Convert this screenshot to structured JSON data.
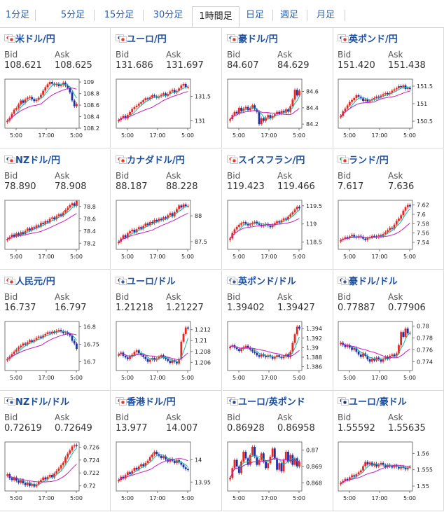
{
  "tabs": [
    {
      "label": "1分足",
      "active": false
    },
    {
      "label": "5分足",
      "active": false
    },
    {
      "label": "15分足",
      "active": false
    },
    {
      "label": "30分足",
      "active": false
    },
    {
      "label": "1時間足",
      "active": true
    },
    {
      "label": "日足",
      "active": false
    },
    {
      "label": "週足",
      "active": false
    },
    {
      "label": "月足",
      "active": false
    }
  ],
  "labels": {
    "bid": "Bid",
    "ask": "Ask"
  },
  "x_ticks": [
    "5:00",
    "17:00",
    "5:00"
  ],
  "colors": {
    "up": "#e8261f",
    "down": "#1b2fa8",
    "ma_fast": "#15b7a5",
    "ma_slow": "#c21fbf",
    "link": "#1d4fa0"
  },
  "pairs": [
    {
      "name": "米ドル/円",
      "bid": "108.621",
      "ask": "108.625",
      "flags": [
        "jp",
        "jp"
      ],
      "y_ticks": [
        "109",
        "108.8",
        "108.6",
        "108.4",
        "108.2"
      ],
      "ylim": [
        108.2,
        109.05
      ],
      "closes": [
        108.33,
        108.38,
        108.45,
        108.52,
        108.55,
        108.61,
        108.68,
        108.64,
        108.7,
        108.73,
        108.74,
        108.7,
        108.67,
        108.69,
        108.73,
        108.78,
        108.85,
        108.91,
        108.96,
        109.0,
        108.97,
        108.95,
        108.97,
        108.93,
        108.95,
        108.99,
        108.94,
        108.9,
        108.82,
        108.68,
        108.58,
        108.62
      ]
    },
    {
      "name": "ユーロ/円",
      "bid": "131.686",
      "ask": "131.697",
      "flags": [
        "eu",
        "jp"
      ],
      "y_ticks": [
        "131.5",
        "131"
      ],
      "ylim": [
        130.85,
        131.85
      ],
      "closes": [
        131.02,
        131.06,
        131.1,
        131.05,
        131.12,
        131.18,
        131.24,
        131.28,
        131.31,
        131.35,
        131.38,
        131.42,
        131.46,
        131.44,
        131.48,
        131.52,
        131.5,
        131.47,
        131.5,
        131.53,
        131.56,
        131.51,
        131.55,
        131.6,
        131.63,
        131.58,
        131.61,
        131.66,
        131.72,
        131.75,
        131.69,
        131.69
      ]
    },
    {
      "name": "豪ドル/円",
      "bid": "84.607",
      "ask": "84.629",
      "flags": [
        "au",
        "jp"
      ],
      "y_ticks": [
        "84.6",
        "84.4",
        "84.2"
      ],
      "ylim": [
        84.15,
        84.75
      ],
      "closes": [
        84.26,
        84.31,
        84.35,
        84.33,
        84.4,
        84.36,
        84.39,
        84.41,
        84.37,
        84.4,
        84.43,
        84.38,
        84.35,
        84.2,
        84.27,
        84.24,
        84.28,
        84.31,
        84.27,
        84.3,
        84.32,
        84.35,
        84.33,
        84.36,
        84.34,
        84.38,
        84.35,
        84.42,
        84.5,
        84.62,
        84.55,
        84.61
      ]
    },
    {
      "name": "英ポンド/円",
      "bid": "151.420",
      "ask": "151.438",
      "flags": [
        "uk",
        "jp"
      ],
      "y_ticks": [
        "151.5",
        "151",
        "150.5"
      ],
      "ylim": [
        150.3,
        151.7
      ],
      "closes": [
        150.65,
        150.78,
        150.86,
        150.95,
        151.05,
        151.1,
        151.16,
        151.24,
        151.2,
        151.15,
        151.08,
        151.12,
        151.06,
        151.09,
        151.13,
        151.16,
        151.2,
        151.18,
        151.23,
        151.27,
        151.3,
        151.27,
        151.31,
        151.37,
        151.41,
        151.44,
        151.5,
        151.47,
        151.52,
        151.42,
        151.45,
        151.42
      ]
    },
    {
      "name": "NZドル/円",
      "bid": "78.890",
      "ask": "78.908",
      "flags": [
        "nz",
        "jp"
      ],
      "y_ticks": [
        "78.8",
        "78.6",
        "78.4",
        "78.2"
      ],
      "ylim": [
        78.1,
        78.9
      ],
      "closes": [
        78.27,
        78.3,
        78.34,
        78.31,
        78.36,
        78.33,
        78.38,
        78.35,
        78.4,
        78.44,
        78.41,
        78.46,
        78.44,
        78.49,
        78.47,
        78.53,
        78.51,
        78.56,
        78.54,
        78.6,
        78.62,
        78.59,
        78.64,
        78.67,
        78.65,
        78.7,
        78.74,
        78.78,
        78.82,
        78.85,
        78.81,
        78.89
      ]
    },
    {
      "name": "カナダドル/円",
      "bid": "88.187",
      "ask": "88.228",
      "flags": [
        "ca",
        "jp"
      ],
      "y_ticks": [
        "88",
        "87.5"
      ],
      "ylim": [
        87.35,
        88.3
      ],
      "closes": [
        87.5,
        87.56,
        87.62,
        87.58,
        87.66,
        87.7,
        87.73,
        87.68,
        87.74,
        87.78,
        87.75,
        87.8,
        87.85,
        87.82,
        87.88,
        87.86,
        87.92,
        87.89,
        87.94,
        87.92,
        87.97,
        87.95,
        88.01,
        88.05,
        87.99,
        88.07,
        88.13,
        88.2,
        88.16,
        88.22,
        88.19,
        88.19
      ]
    },
    {
      "name": "スイスフラン/円",
      "bid": "119.423",
      "ask": "119.466",
      "flags": [
        "ch",
        "jp"
      ],
      "y_ticks": [
        "119.5",
        "119",
        "118.5"
      ],
      "ylim": [
        118.3,
        119.65
      ],
      "closes": [
        118.6,
        118.75,
        118.85,
        118.92,
        118.98,
        119.02,
        119.05,
        119.0,
        118.96,
        118.99,
        119.03,
        119.06,
        119.02,
        118.98,
        118.94,
        118.97,
        119.0,
        118.95,
        118.91,
        118.97,
        119.02,
        119.07,
        119.04,
        119.1,
        119.15,
        119.12,
        119.2,
        119.26,
        119.32,
        119.4,
        119.47,
        119.43
      ]
    },
    {
      "name": "ランド/円",
      "bid": "7.617",
      "ask": "7.636",
      "flags": [
        "za",
        "jp"
      ],
      "y_ticks": [
        "7.62",
        "7.6",
        "7.58",
        "7.56",
        "7.54"
      ],
      "ylim": [
        7.525,
        7.63
      ],
      "closes": [
        7.545,
        7.548,
        7.551,
        7.549,
        7.553,
        7.556,
        7.552,
        7.55,
        7.554,
        7.552,
        7.548,
        7.545,
        7.549,
        7.551,
        7.554,
        7.553,
        7.551,
        7.555,
        7.553,
        7.558,
        7.562,
        7.566,
        7.571,
        7.569,
        7.578,
        7.586,
        7.591,
        7.598,
        7.608,
        7.615,
        7.62,
        7.617
      ]
    },
    {
      "name": "人民元/円",
      "bid": "16.737",
      "ask": "16.797",
      "flags": [
        "cn",
        "jp"
      ],
      "y_ticks": [
        "16.8",
        "16.75",
        "16.7"
      ],
      "ylim": [
        16.675,
        16.815
      ],
      "closes": [
        16.708,
        16.715,
        16.722,
        16.729,
        16.735,
        16.741,
        16.746,
        16.752,
        16.749,
        16.756,
        16.761,
        16.757,
        16.763,
        16.768,
        16.772,
        16.769,
        16.775,
        16.779,
        16.784,
        16.781,
        16.786,
        16.783,
        16.788,
        16.791,
        16.787,
        16.782,
        16.784,
        16.779,
        16.775,
        16.76,
        16.752,
        16.737
      ]
    },
    {
      "name": "ユーロ/ドル",
      "bid": "1.21218",
      "ask": "1.21227",
      "flags": [
        "eu",
        "us"
      ],
      "y_ticks": [
        "1.212",
        "1.21",
        "1.208",
        "1.206"
      ],
      "ylim": [
        1.2045,
        1.2135
      ],
      "closes": [
        1.2075,
        1.2078,
        1.2072,
        1.2069,
        1.2066,
        1.2071,
        1.2074,
        1.2079,
        1.2082,
        1.2077,
        1.2073,
        1.207,
        1.2066,
        1.2061,
        1.2065,
        1.2068,
        1.2064,
        1.2067,
        1.207,
        1.2073,
        1.2069,
        1.2066,
        1.2063,
        1.2059,
        1.2064,
        1.2061,
        1.2058,
        1.2066,
        1.2098,
        1.2112,
        1.2124,
        1.2122
      ]
    },
    {
      "name": "英ポンド/ドル",
      "bid": "1.39402",
      "ask": "1.39427",
      "flags": [
        "uk",
        "us"
      ],
      "y_ticks": [
        "1.394",
        "1.392",
        "1.39",
        "1.388",
        "1.386"
      ],
      "ylim": [
        1.3852,
        1.3955
      ],
      "closes": [
        1.3902,
        1.3905,
        1.39,
        1.3897,
        1.3893,
        1.3897,
        1.3901,
        1.3904,
        1.39,
        1.3896,
        1.3892,
        1.3889,
        1.3884,
        1.3881,
        1.3886,
        1.3883,
        1.388,
        1.3884,
        1.3881,
        1.3877,
        1.388,
        1.3884,
        1.3881,
        1.3878,
        1.3882,
        1.3886,
        1.388,
        1.3891,
        1.391,
        1.3928,
        1.3944,
        1.394
      ]
    },
    {
      "name": "豪ドル/ドル",
      "bid": "0.77887",
      "ask": "0.77906",
      "flags": [
        "au",
        "us"
      ],
      "y_ticks": [
        "0.78",
        "0.778",
        "0.776",
        "0.774"
      ],
      "ylim": [
        0.7725,
        0.7808
      ],
      "closes": [
        0.7772,
        0.7768,
        0.7765,
        0.7768,
        0.7764,
        0.776,
        0.7763,
        0.7757,
        0.7752,
        0.7748,
        0.7754,
        0.775,
        0.7744,
        0.774,
        0.7745,
        0.7742,
        0.7747,
        0.7744,
        0.774,
        0.7745,
        0.7748,
        0.7745,
        0.775,
        0.7752,
        0.7749,
        0.7754,
        0.7768,
        0.779,
        0.7782,
        0.7796,
        0.7788,
        0.7789
      ]
    },
    {
      "name": "NZドル/ドル",
      "bid": "0.72619",
      "ask": "0.72649",
      "flags": [
        "nz",
        "us"
      ],
      "y_ticks": [
        "0.726",
        "0.724",
        "0.722",
        "0.72"
      ],
      "ylim": [
        0.7192,
        0.7268
      ],
      "closes": [
        0.7218,
        0.7212,
        0.7209,
        0.7213,
        0.7208,
        0.7205,
        0.7209,
        0.7204,
        0.7201,
        0.7205,
        0.72,
        0.7203,
        0.7199,
        0.7202,
        0.7206,
        0.7209,
        0.7213,
        0.721,
        0.7214,
        0.7217,
        0.7213,
        0.7219,
        0.7223,
        0.7227,
        0.7232,
        0.7236,
        0.7244,
        0.725,
        0.7255,
        0.7261,
        0.7263,
        0.7262
      ]
    },
    {
      "name": "香港ドル/円",
      "bid": "13.977",
      "ask": "14.007",
      "flags": [
        "hk",
        "jp"
      ],
      "y_ticks": [
        "14",
        "13.95"
      ],
      "ylim": [
        13.93,
        14.04
      ],
      "closes": [
        13.955,
        13.962,
        13.958,
        13.966,
        13.972,
        13.968,
        13.975,
        13.982,
        13.978,
        13.985,
        13.99,
        13.986,
        13.993,
        13.998,
        14.006,
        14.012,
        14.018,
        14.013,
        14.009,
        14.004,
        14.008,
        14.001,
        13.996,
        14.002,
        13.998,
        13.993,
        13.999,
        13.994,
        13.989,
        13.983,
        13.979,
        13.977
      ]
    },
    {
      "name": "ユーロ/英ポンド",
      "bid": "0.86928",
      "ask": "0.86958",
      "flags": [
        "eu",
        "uk"
      ],
      "y_ticks": [
        "0.87",
        "0.869",
        "0.868"
      ],
      "ylim": [
        0.8675,
        0.8705
      ],
      "closes": [
        0.8683,
        0.8689,
        0.8694,
        0.869,
        0.8686,
        0.8693,
        0.8699,
        0.8695,
        0.8691,
        0.8697,
        0.8702,
        0.8696,
        0.8691,
        0.8694,
        0.8698,
        0.8693,
        0.8689,
        0.8692,
        0.8696,
        0.8701,
        0.8695,
        0.8688,
        0.8692,
        0.8687,
        0.8694,
        0.8699,
        0.8693,
        0.8697,
        0.8691,
        0.8695,
        0.869,
        0.8693
      ]
    },
    {
      "name": "ユーロ/豪ドル",
      "bid": "1.55592",
      "ask": "1.55635",
      "flags": [
        "eu",
        "au"
      ],
      "y_ticks": [
        "1.56",
        "1.555",
        "1.55"
      ],
      "ylim": [
        1.5485,
        1.5635
      ],
      "closes": [
        1.551,
        1.5516,
        1.5522,
        1.5519,
        1.5527,
        1.5533,
        1.5529,
        1.5536,
        1.5542,
        1.5548,
        1.5561,
        1.5574,
        1.5566,
        1.5572,
        1.5563,
        1.5569,
        1.556,
        1.5566,
        1.5571,
        1.5564,
        1.5558,
        1.5565,
        1.5561,
        1.5557,
        1.5563,
        1.5559,
        1.5554,
        1.556,
        1.5556,
        1.5551,
        1.5557,
        1.5559
      ]
    }
  ]
}
